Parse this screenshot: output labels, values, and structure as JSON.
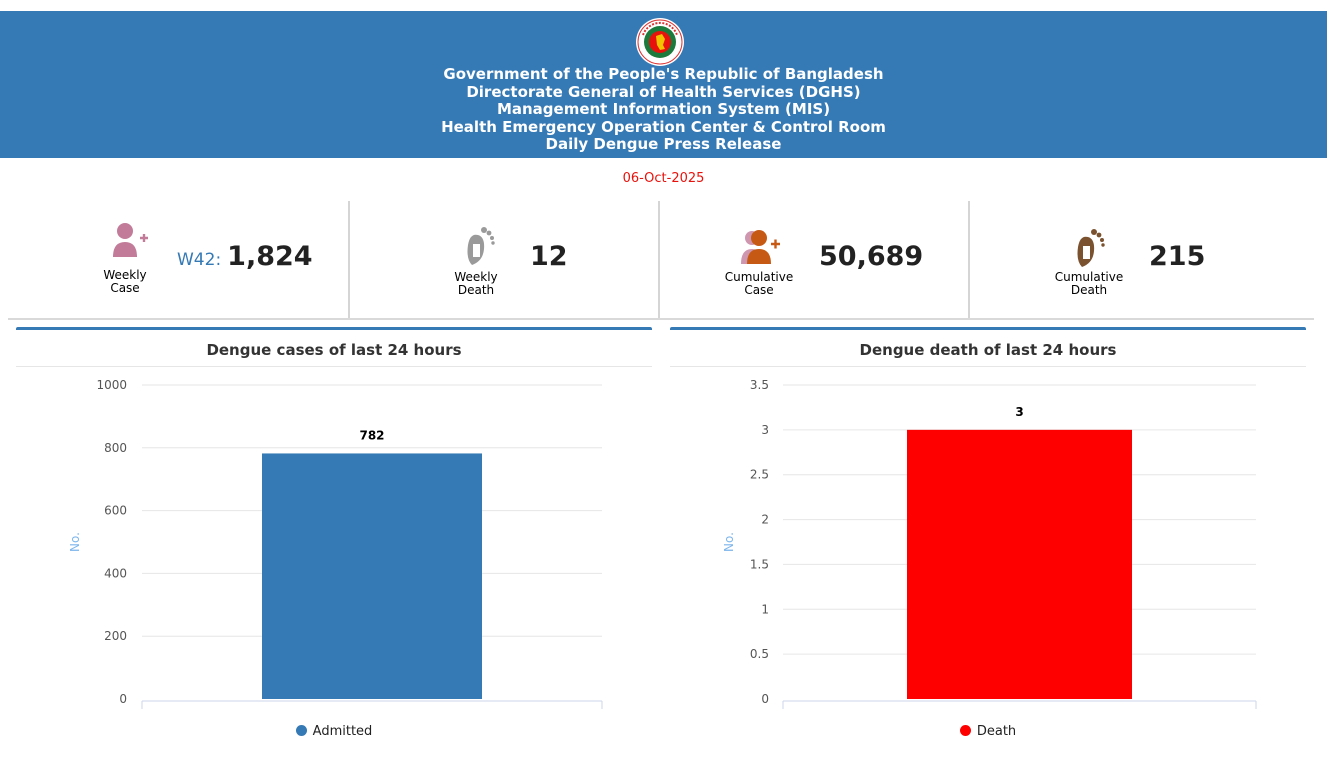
{
  "header": {
    "lines": [
      "Government of the People's Republic of Bangladesh",
      "Directorate General of Health Services (DGHS)",
      "Management Information System (MIS)",
      "Health Emergency Operation Center & Control Room",
      "Daily Dengue Press Release"
    ]
  },
  "date": "06-Oct-2025",
  "stats": {
    "weekly_case": {
      "label_line1": "Weekly",
      "label_line2": "Case",
      "week": "W42:",
      "value": "1,824",
      "icon": "add-user-icon",
      "icon_color": "#c27b98"
    },
    "weekly_death": {
      "label_line1": "Weekly",
      "label_line2": "Death",
      "value": "12",
      "icon": "footprint-tag-icon",
      "icon_color": "#9a9a9a"
    },
    "cumulative_case": {
      "label_line1": "Cumulative",
      "label_line2": "Case",
      "value": "50,689",
      "icon": "add-users-group-icon",
      "icon_color": "#c65a14"
    },
    "cumulative_death": {
      "label_line1": "Cumulative",
      "label_line2": "Death",
      "value": "215",
      "icon": "footprint-tag-icon",
      "icon_color": "#7a5230"
    }
  },
  "chart_data": [
    {
      "type": "bar",
      "title": "Dengue cases of last 24 hours",
      "ylabel": "No.",
      "categories": [
        ""
      ],
      "series": [
        {
          "name": "Admitted",
          "values": [
            782
          ],
          "color": "#3579b5"
        }
      ],
      "ylim": [
        0,
        1000
      ],
      "yticks": [
        0,
        200,
        400,
        600,
        800,
        1000
      ],
      "ytick_labels": [
        "0",
        "200",
        "400",
        "600",
        "800",
        "1000"
      ],
      "data_labels": [
        "782"
      ],
      "grid": true,
      "legend": "bottom"
    },
    {
      "type": "bar",
      "title": "Dengue death of last 24 hours",
      "ylabel": "No.",
      "categories": [
        ""
      ],
      "series": [
        {
          "name": "Death",
          "values": [
            3
          ],
          "color": "#ff0000"
        }
      ],
      "ylim": [
        0,
        3.5
      ],
      "yticks": [
        0,
        0.5,
        1,
        1.5,
        2,
        2.5,
        3,
        3.5
      ],
      "ytick_labels": [
        "0",
        "0.5",
        "1",
        "1.5",
        "2",
        "2.5",
        "3",
        "3.5"
      ],
      "data_labels": [
        "3"
      ],
      "grid": true,
      "legend": "bottom"
    }
  ]
}
